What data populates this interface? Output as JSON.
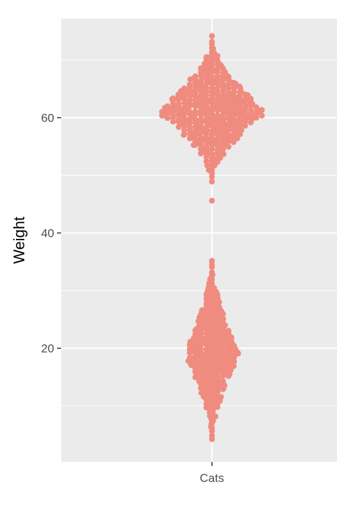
{
  "chart_data": {
    "type": "scatter",
    "subtype": "beeswarm",
    "title": "",
    "xlabel": "",
    "ylabel": "Weight",
    "categories": [
      "Cats"
    ],
    "ylim": [
      1,
      77
    ],
    "yticks": [
      20,
      40,
      60
    ],
    "ytick_labels": [
      "20",
      "40",
      "60"
    ],
    "grid": true,
    "legend": "none",
    "colors": {
      "point": "#f08b80",
      "panel": "#ebebeb",
      "grid": "#ffffff",
      "axis_text": "#4d4d4d",
      "tick": "#333333"
    },
    "series": [
      {
        "category": "Cats",
        "clusters": [
          {
            "center": 61,
            "min": 49,
            "max": 74,
            "count": 520,
            "spread": 13.0,
            "outliers": [
              45.6
            ]
          },
          {
            "center": 19,
            "min": 3.8,
            "max": 35.3,
            "count": 520,
            "spread": 6.5,
            "outliers": []
          }
        ]
      }
    ]
  }
}
